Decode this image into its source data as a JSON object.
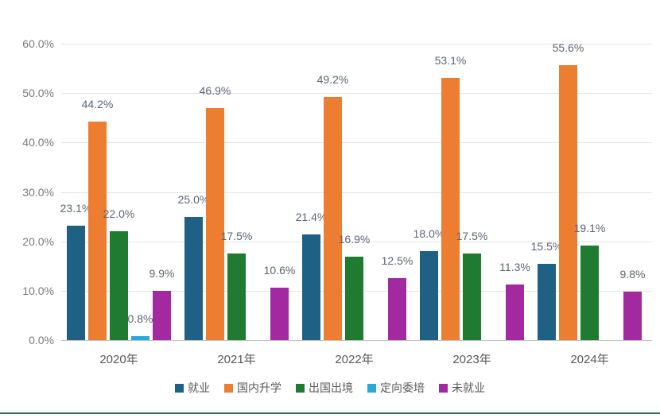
{
  "chart_data": {
    "type": "bar",
    "title": "",
    "xlabel": "",
    "ylabel": "",
    "categories": [
      "2020年",
      "2021年",
      "2022年",
      "2023年",
      "2024年"
    ],
    "series": [
      {
        "name": "就业",
        "color": "#1F6185",
        "values": [
          23.1,
          25.0,
          21.4,
          18.0,
          15.5
        ],
        "labels": [
          "23.1%",
          "25.0%",
          "21.4%",
          "18.0%",
          "15.5%"
        ]
      },
      {
        "name": "国内升学",
        "color": "#ED7D31",
        "values": [
          44.2,
          46.9,
          49.2,
          53.1,
          55.6
        ],
        "labels": [
          "44.2%",
          "46.9%",
          "49.2%",
          "53.1%",
          "55.6%"
        ]
      },
      {
        "name": "出国出境",
        "color": "#1E7B2F",
        "values": [
          22.0,
          17.5,
          16.9,
          17.5,
          19.1
        ],
        "labels": [
          "22.0%",
          "17.5%",
          "16.9%",
          "17.5%",
          "19.1%"
        ]
      },
      {
        "name": "定向委培",
        "color": "#2AA8DC",
        "values": [
          0.8,
          null,
          null,
          null,
          null
        ],
        "labels": [
          "0.8%",
          null,
          null,
          null,
          null
        ]
      },
      {
        "name": "未就业",
        "color": "#A229A0",
        "values": [
          9.9,
          10.6,
          12.5,
          11.3,
          9.8
        ],
        "labels": [
          "9.9%",
          "10.6%",
          "12.5%",
          "11.3%",
          "9.8%"
        ]
      }
    ],
    "y_axis": {
      "min": 0,
      "max": 60,
      "step": 10,
      "ticks": [
        "0.0%",
        "10.0%",
        "20.0%",
        "30.0%",
        "40.0%",
        "50.0%",
        "60.0%"
      ]
    },
    "legend": {
      "position": "bottom",
      "items": [
        "就业",
        "国内升学",
        "出国出境",
        "定向委培",
        "未就业"
      ]
    },
    "grid": true
  },
  "page": {
    "background": "#FFFFFF",
    "bottom_accent_color": "#35714D",
    "gridline_color": "#E4E4E4",
    "axis_line_color": "#C4C4C4",
    "data_label_color": "#5B6577",
    "axis_text_color": "#7A7A7A",
    "category_text_color": "#595959"
  }
}
